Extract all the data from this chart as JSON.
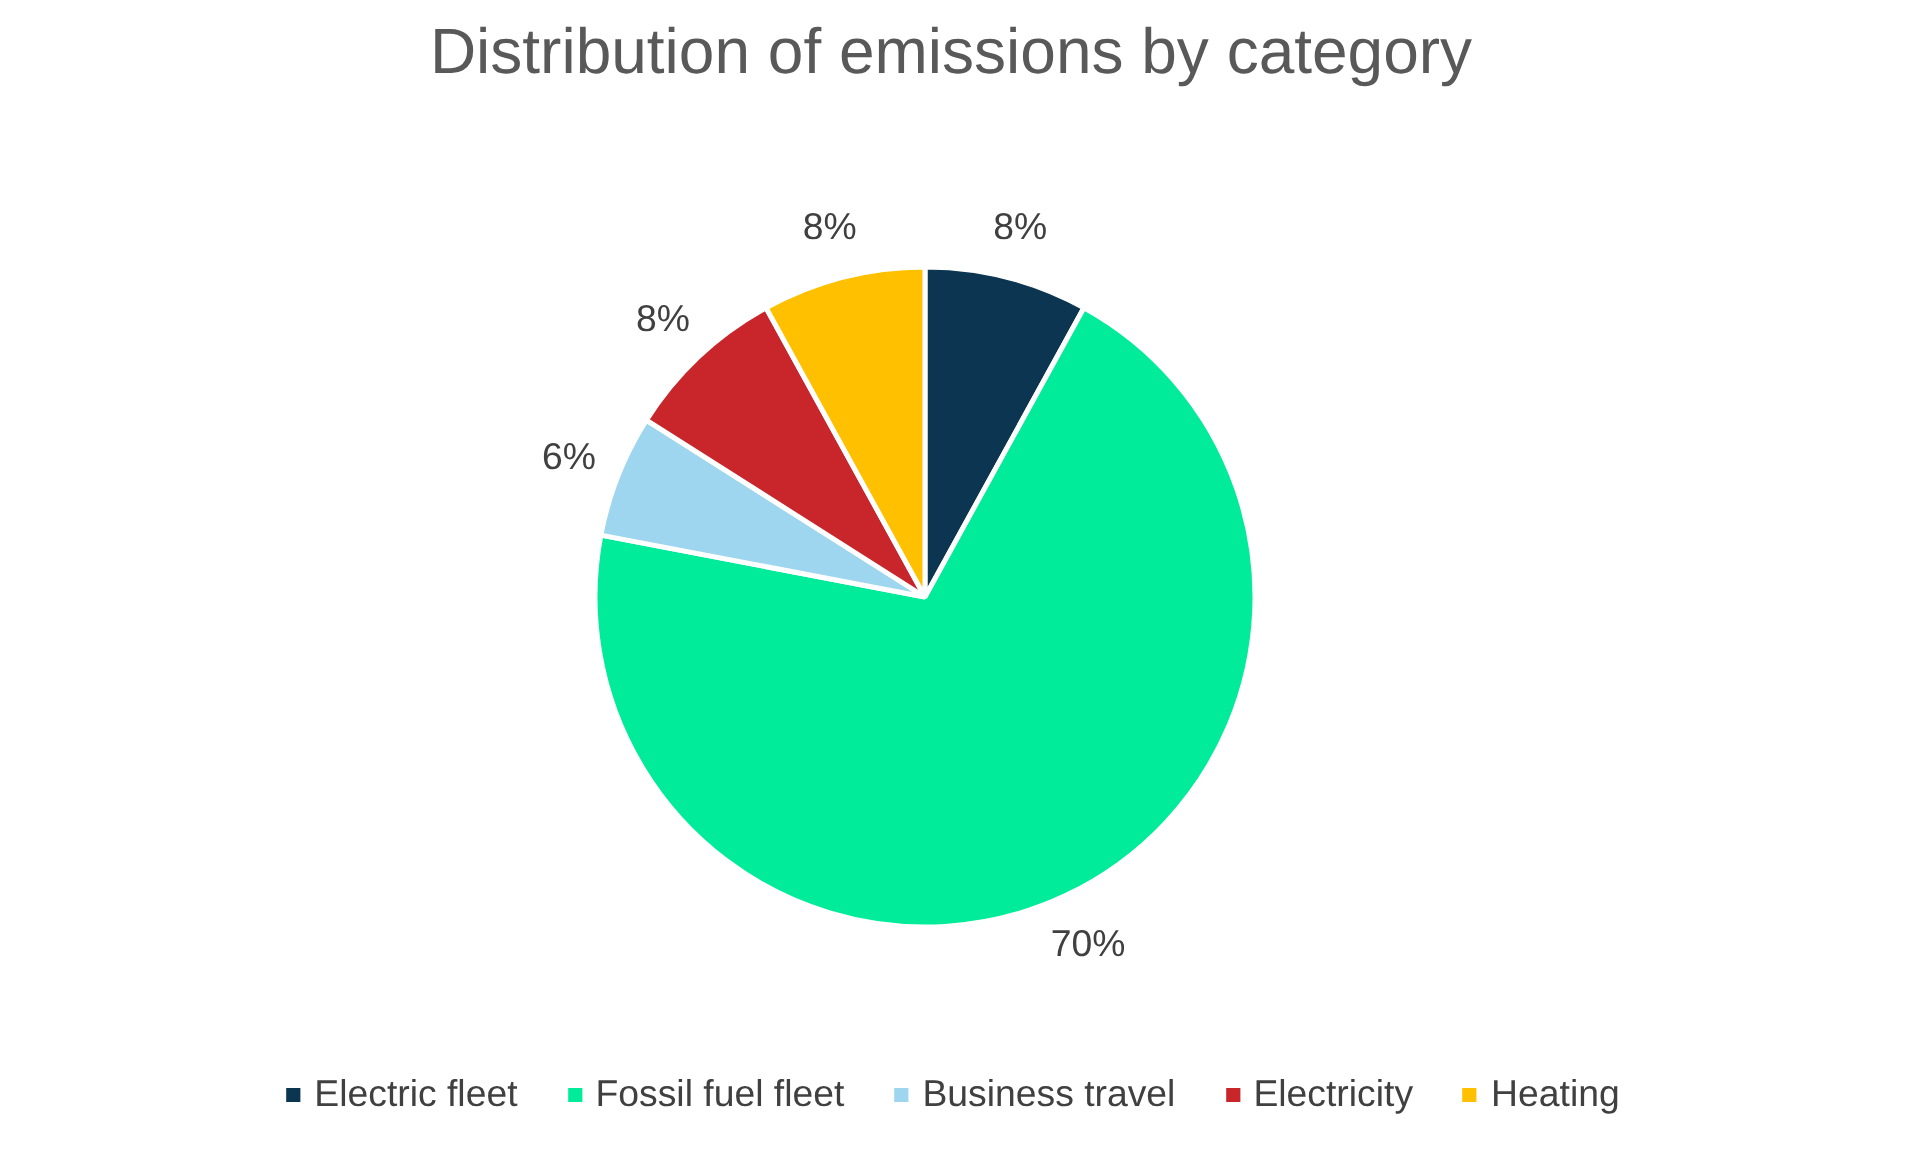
{
  "chart_data": {
    "type": "pie",
    "title": "Distribution of emissions by category",
    "categories": [
      "Electric fleet",
      "Fossil fuel fleet",
      "Business travel",
      "Electricity",
      "Heating"
    ],
    "values": [
      8,
      70,
      6,
      8,
      8
    ],
    "value_labels": [
      "8%",
      "70%",
      "6%",
      "8%",
      "8%"
    ],
    "colors": [
      "#0b3550",
      "#00eb9a",
      "#9dd6ee",
      "#c8262a",
      "#ffc000"
    ],
    "legend": "bottom"
  }
}
